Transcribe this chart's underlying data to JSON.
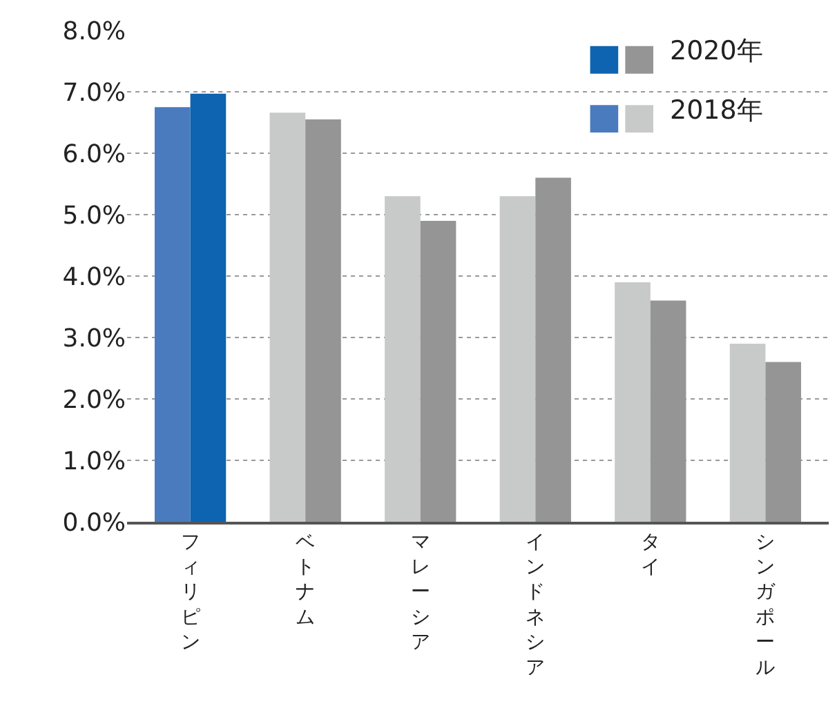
{
  "chart_data": {
    "type": "bar",
    "categories": [
      "フィリピン",
      "ベトナム",
      "マレーシア",
      "インドネシア",
      "タイ",
      "シンガポール"
    ],
    "series": [
      {
        "name": "2018年",
        "colors": [
          "#4a7bbf",
          "#c8c9c9",
          "#c8c9c9",
          "#c8c9c9",
          "#c8c9c9",
          "#c8c9c9"
        ],
        "values": [
          6.75,
          6.66,
          5.3,
          5.3,
          3.9,
          2.9
        ]
      },
      {
        "name": "2020年",
        "colors": [
          "#0e64b0",
          "#959595",
          "#959595",
          "#959595",
          "#959595",
          "#959595"
        ],
        "values": [
          6.97,
          6.55,
          4.9,
          5.6,
          3.6,
          2.6
        ]
      }
    ],
    "ylim": [
      0,
      8
    ],
    "yticks": [
      {
        "value": 0,
        "label": "0.0%"
      },
      {
        "value": 1,
        "label": "1.0%"
      },
      {
        "value": 2,
        "label": "2.0%"
      },
      {
        "value": 3,
        "label": "3.0%"
      },
      {
        "value": 4,
        "label": "4.0%"
      },
      {
        "value": 5,
        "label": "5.0%"
      },
      {
        "value": 6,
        "label": "6.0%"
      },
      {
        "value": 7,
        "label": "7.0%"
      },
      {
        "value": 8,
        "label": "8.0%"
      }
    ],
    "grid": "y",
    "legend": "top right"
  }
}
